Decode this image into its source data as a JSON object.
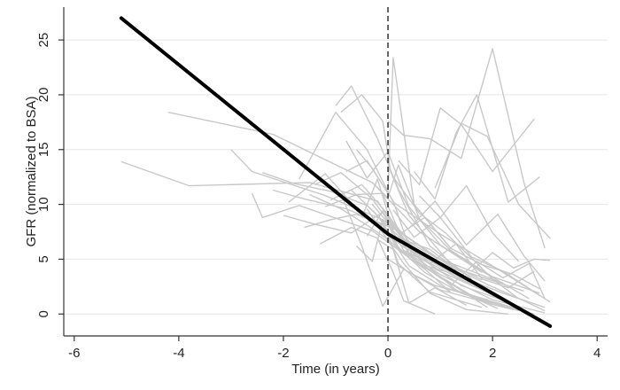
{
  "chart_data": {
    "type": "line",
    "xlabel": "Time (in years)",
    "ylabel": "GFR (normalized to BSA)",
    "xlim": [
      -6.2,
      4.2
    ],
    "ylim": [
      -2.0,
      28.0
    ],
    "x_ticks": [
      -6,
      -4,
      -2,
      0,
      2,
      4
    ],
    "y_ticks": [
      0,
      5,
      10,
      15,
      20,
      25
    ],
    "grid": "horizontal",
    "reference_line": {
      "x": 0,
      "style": "dashed"
    },
    "colors": {
      "fitted": "#000000",
      "individual": "#c8c8c8",
      "grid": "#e6e6e6",
      "axis": "#333333"
    },
    "series": [
      {
        "role": "fitted",
        "x": [
          -5.1,
          0,
          3.1
        ],
        "y": [
          27.0,
          7.3,
          -1.1
        ]
      }
    ],
    "individual_trajectories": [
      {
        "x": [
          -5.1,
          -3.8,
          -1.5,
          -0.2,
          0.4,
          1.5
        ],
        "y": [
          13.9,
          11.7,
          12.0,
          10.3,
          6.0,
          3.2
        ]
      },
      {
        "x": [
          -4.2,
          -2.2,
          -0.3,
          0.6,
          1.8
        ],
        "y": [
          18.4,
          16.4,
          12.0,
          7.5,
          3.8
        ]
      },
      {
        "x": [
          -3.0,
          -2.6,
          -1.2,
          -0.1,
          0.9,
          2.2
        ],
        "y": [
          15.0,
          13.0,
          10.8,
          8.6,
          5.2,
          2.8
        ]
      },
      {
        "x": [
          -2.6,
          -2.4,
          -1.7,
          -0.3,
          0.7
        ],
        "y": [
          11.0,
          8.8,
          9.9,
          7.6,
          4.1
        ]
      },
      {
        "x": [
          -2.2,
          -1.6,
          -0.8,
          0.2,
          1.2,
          2.6
        ],
        "y": [
          11.3,
          10.5,
          9.6,
          7.6,
          4.3,
          2.1
        ]
      },
      {
        "x": [
          -1.9,
          -1.2,
          -0.5,
          0.3,
          1.6
        ],
        "y": [
          10.2,
          12.8,
          9.1,
          6.1,
          2.8
        ]
      },
      {
        "x": [
          -1.7,
          -1.0,
          -0.4,
          0.1,
          1.0,
          2.1,
          3.1
        ],
        "y": [
          12.3,
          18.4,
          15.0,
          10.2,
          7.3,
          4.1,
          1.1
        ]
      },
      {
        "x": [
          -1.0,
          -0.7,
          -0.2,
          0.2,
          0.8,
          1.6
        ],
        "y": [
          19.0,
          20.8,
          16.0,
          11.4,
          6.2,
          3.2
        ]
      },
      {
        "x": [
          -0.9,
          -0.5,
          -0.1,
          0.05,
          0.4,
          1.3
        ],
        "y": [
          18.4,
          20.0,
          17.6,
          13.0,
          9.0,
          4.0
        ]
      },
      {
        "x": [
          -0.6,
          -0.3,
          0.0,
          0.1,
          0.5,
          1.2
        ],
        "y": [
          15.0,
          13.3,
          11.0,
          23.4,
          10.0,
          6.0
        ]
      },
      {
        "x": [
          0.0,
          0.3,
          0.8,
          1.4,
          2.0,
          2.6,
          3.0
        ],
        "y": [
          17.6,
          16.3,
          16.0,
          14.2,
          24.2,
          12.0,
          6.0
        ]
      },
      {
        "x": [
          0.2,
          0.6,
          1.0,
          1.4,
          2.0,
          2.8
        ],
        "y": [
          14.0,
          11.8,
          18.8,
          17.3,
          13.0,
          17.8
        ]
      },
      {
        "x": [
          0.5,
          0.9,
          1.3,
          1.7,
          2.3,
          2.9
        ],
        "y": [
          13.0,
          10.5,
          16.5,
          20.0,
          10.2,
          12.5
        ]
      },
      {
        "x": [
          0.9,
          1.4,
          1.9,
          2.5,
          3.1
        ],
        "y": [
          11.5,
          17.4,
          16.2,
          10.0,
          6.9
        ]
      },
      {
        "x": [
          -1.4,
          -0.9,
          -0.3,
          0.1,
          0.6,
          1.4,
          2.4
        ],
        "y": [
          11.8,
          12.9,
          10.5,
          7.9,
          5.2,
          2.6,
          0.9
        ]
      },
      {
        "x": [
          -1.2,
          -0.6,
          -0.1,
          0.4,
          1.1,
          1.9
        ],
        "y": [
          9.8,
          10.9,
          11.0,
          5.4,
          2.4,
          1.3
        ]
      },
      {
        "x": [
          -0.8,
          -0.4,
          0.1,
          0.5,
          1.1,
          1.9
        ],
        "y": [
          13.0,
          14.0,
          10.3,
          4.8,
          3.1,
          0.6
        ]
      },
      {
        "x": [
          -0.7,
          -0.2,
          0.2,
          0.7,
          1.4,
          2.5
        ],
        "y": [
          11.3,
          9.0,
          6.1,
          3.8,
          1.9,
          0.3
        ]
      },
      {
        "x": [
          -0.5,
          -0.2,
          0.1,
          0.6,
          1.3,
          2.1
        ],
        "y": [
          8.8,
          12.3,
          7.6,
          5.0,
          2.2,
          0.5
        ]
      },
      {
        "x": [
          -0.4,
          -0.1,
          0.2,
          0.9,
          1.7,
          2.8
        ],
        "y": [
          7.1,
          9.4,
          6.0,
          3.7,
          1.4,
          0.0
        ]
      },
      {
        "x": [
          -0.3,
          0.0,
          0.3,
          1.0,
          2.0,
          3.0
        ],
        "y": [
          10.0,
          8.3,
          5.8,
          3.6,
          1.3,
          0.1
        ]
      },
      {
        "x": [
          -1.6,
          -1.1,
          -0.6,
          -0.1,
          0.4,
          1.2
        ],
        "y": [
          7.9,
          8.6,
          9.1,
          8.1,
          4.4,
          2.0
        ]
      },
      {
        "x": [
          -2.0,
          -1.4,
          -0.7,
          -0.1,
          0.5,
          1.5,
          2.3
        ],
        "y": [
          9.0,
          8.2,
          7.4,
          9.3,
          5.4,
          2.9,
          1.0
        ]
      },
      {
        "x": [
          -1.3,
          -0.7,
          -0.2,
          0.1,
          0.3,
          0.9
        ],
        "y": [
          6.4,
          7.9,
          6.9,
          3.8,
          1.2,
          0.0
        ]
      },
      {
        "x": [
          -0.6,
          -0.3,
          -0.1,
          0.2,
          0.8,
          1.8
        ],
        "y": [
          6.2,
          4.8,
          8.6,
          4.6,
          2.0,
          0.6
        ]
      },
      {
        "x": [
          -0.9,
          -0.5,
          -0.1,
          0.3,
          1.0,
          2.0
        ],
        "y": [
          11.0,
          6.2,
          0.7,
          4.1,
          2.2,
          0.9
        ]
      },
      {
        "x": [
          -1.5,
          -0.9,
          -0.4,
          0.0,
          0.5,
          1.3,
          2.2,
          3.0
        ],
        "y": [
          10.9,
          9.6,
          8.1,
          6.8,
          4.7,
          3.6,
          1.9,
          0.6
        ]
      },
      {
        "x": [
          0.1,
          0.4,
          0.8,
          1.3,
          1.9,
          2.6,
          3.0
        ],
        "y": [
          8.4,
          6.6,
          5.9,
          4.1,
          2.7,
          1.2,
          0.3
        ]
      },
      {
        "x": [
          0.2,
          0.7,
          1.2,
          1.8,
          2.4,
          2.9
        ],
        "y": [
          7.2,
          8.8,
          6.0,
          4.5,
          3.6,
          2.3
        ]
      },
      {
        "x": [
          0.1,
          0.5,
          1.0,
          1.6,
          2.2,
          2.9
        ],
        "y": [
          9.5,
          7.0,
          8.8,
          5.2,
          3.9,
          1.7
        ]
      },
      {
        "x": [
          0.3,
          0.8,
          1.3,
          1.8,
          2.3,
          2.8
        ],
        "y": [
          5.8,
          4.6,
          6.4,
          3.2,
          2.4,
          3.9
        ]
      },
      {
        "x": [
          0.0,
          0.4,
          0.9,
          1.5,
          2.1,
          2.7
        ],
        "y": [
          5.0,
          3.8,
          2.6,
          1.8,
          1.0,
          0.2
        ]
      },
      {
        "x": [
          0.1,
          0.6,
          1.1,
          1.6,
          2.0,
          2.5
        ],
        "y": [
          12.5,
          9.2,
          7.4,
          5.1,
          3.2,
          1.4
        ]
      },
      {
        "x": [
          0.2,
          0.5,
          1.0,
          1.4,
          1.9,
          2.4
        ],
        "y": [
          6.9,
          5.0,
          3.3,
          2.2,
          1.0,
          0.4
        ]
      },
      {
        "x": [
          -0.2,
          0.1,
          0.4,
          0.9,
          1.5
        ],
        "y": [
          6.8,
          5.9,
          1.0,
          2.4,
          0.8
        ]
      },
      {
        "x": [
          -0.4,
          -0.1,
          0.3,
          0.8,
          1.5,
          2.3
        ],
        "y": [
          9.6,
          7.4,
          4.6,
          1.9,
          0.4,
          0.0
        ]
      },
      {
        "x": [
          -1.1,
          -0.5,
          0.0,
          0.3,
          0.9,
          1.7,
          2.4
        ],
        "y": [
          10.4,
          11.8,
          9.1,
          6.9,
          4.1,
          2.4,
          0.9
        ]
      },
      {
        "x": [
          -2.4,
          -1.8,
          -1.1,
          -0.4,
          0.2,
          0.9,
          1.8
        ],
        "y": [
          12.9,
          11.9,
          11.2,
          9.9,
          7.1,
          5.2,
          3.1
        ]
      },
      {
        "x": [
          -0.8,
          -0.4,
          0.0,
          0.4,
          1.0,
          1.8,
          2.7
        ],
        "y": [
          15.8,
          12.4,
          14.8,
          9.8,
          6.3,
          3.9,
          1.4
        ]
      },
      {
        "x": [
          -0.3,
          0.0,
          0.2,
          0.6,
          1.2,
          2.0,
          2.9
        ],
        "y": [
          12.0,
          10.6,
          13.6,
          8.7,
          5.8,
          3.4,
          1.9
        ]
      },
      {
        "x": [
          1.6,
          2.0,
          2.4,
          2.8,
          3.1
        ],
        "y": [
          3.9,
          5.6,
          4.2,
          5.0,
          4.9
        ]
      },
      {
        "x": [
          1.2,
          1.7,
          2.2,
          2.7,
          3.0
        ],
        "y": [
          2.6,
          4.8,
          3.3,
          4.6,
          1.4
        ]
      },
      {
        "x": [
          0.6,
          1.0,
          1.5,
          2.0,
          2.5
        ],
        "y": [
          10.8,
          8.8,
          11.7,
          7.4,
          4.8
        ]
      },
      {
        "x": [
          0.4,
          0.9,
          1.5,
          2.1,
          2.6,
          3.0
        ],
        "y": [
          7.8,
          10.3,
          6.3,
          9.1,
          5.3,
          3.0
        ]
      }
    ]
  }
}
